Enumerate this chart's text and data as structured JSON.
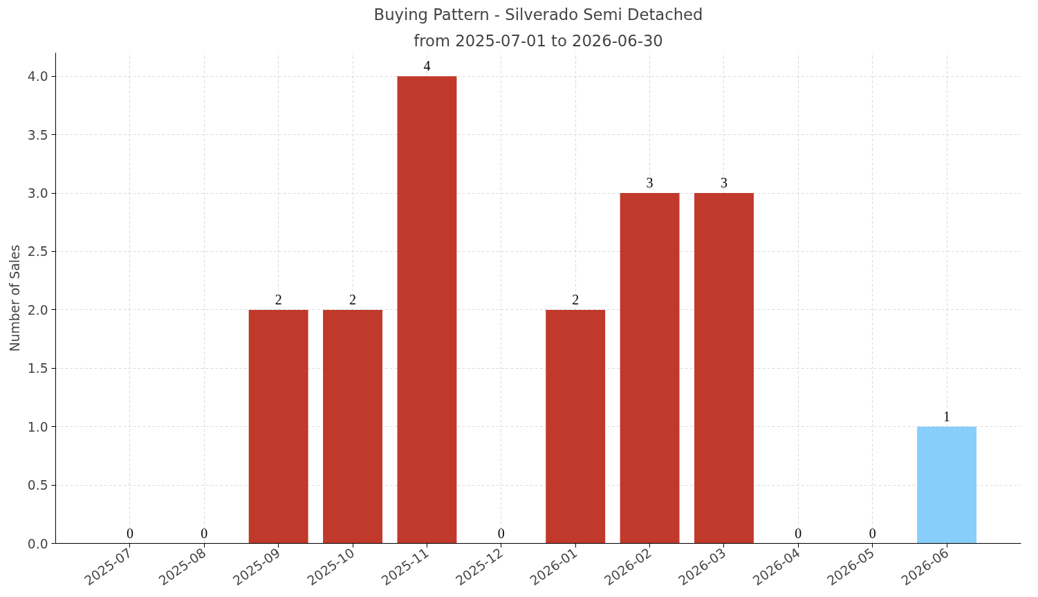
{
  "chart_data": {
    "type": "bar",
    "title": "Buying Pattern - Silverado Semi Detached",
    "subtitle": "from 2025-07-01 to 2026-06-30",
    "ylabel": "Number of Sales",
    "categories": [
      "2025-07",
      "2025-08",
      "2025-09",
      "2025-10",
      "2025-11",
      "2025-12",
      "2026-01",
      "2026-02",
      "2026-03",
      "2026-04",
      "2026-05",
      "2026-06"
    ],
    "values": [
      0,
      0,
      2,
      2,
      4,
      0,
      2,
      3,
      3,
      0,
      0,
      1
    ],
    "colors": [
      "#c0392b",
      "#c0392b",
      "#c0392b",
      "#c0392b",
      "#c0392b",
      "#c0392b",
      "#c0392b",
      "#c0392b",
      "#c0392b",
      "#c0392b",
      "#c0392b",
      "#87cefa"
    ],
    "ylim": [
      0,
      4.2
    ],
    "yticks": [
      {
        "value": 0,
        "label": "0.0"
      },
      {
        "value": 0.5,
        "label": "0.5"
      },
      {
        "value": 1,
        "label": "1.0"
      },
      {
        "value": 1.5,
        "label": "1.5"
      },
      {
        "value": 2,
        "label": "2.0"
      },
      {
        "value": 2.5,
        "label": "2.5"
      },
      {
        "value": 3,
        "label": "3.0"
      },
      {
        "value": 3.5,
        "label": "3.5"
      },
      {
        "value": 4,
        "label": "4.0"
      }
    ],
    "grid": true,
    "data_labels": true
  }
}
